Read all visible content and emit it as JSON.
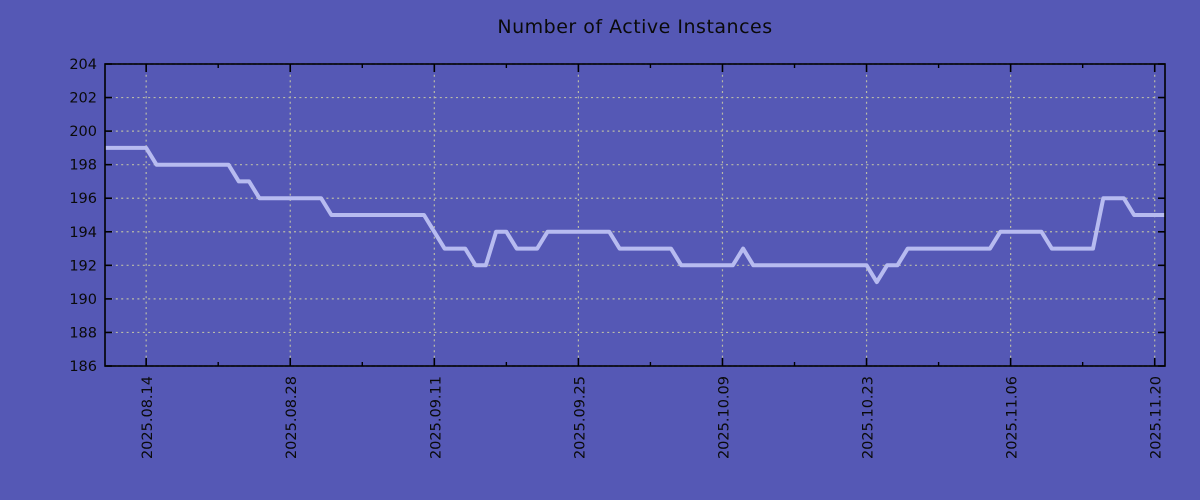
{
  "chart_data": {
    "type": "line",
    "title": "Number of Active Instances",
    "x_start_date": "2025.08.10",
    "x_end_date": "2025.11.21",
    "x_frequency": "daily",
    "values": [
      199,
      199,
      199,
      199,
      199,
      198,
      198,
      198,
      198,
      198,
      198,
      198,
      198,
      197,
      197,
      196,
      196,
      196,
      196,
      196,
      196,
      196,
      195,
      195,
      195,
      195,
      195,
      195,
      195,
      195,
      195,
      195,
      194,
      193,
      193,
      193,
      192,
      192,
      194,
      194,
      193,
      193,
      193,
      194,
      194,
      194,
      194,
      194,
      194,
      194,
      193,
      193,
      193,
      193,
      193,
      193,
      192,
      192,
      192,
      192,
      192,
      192,
      193,
      192,
      192,
      192,
      192,
      192,
      192,
      192,
      192,
      192,
      192,
      192,
      192,
      191,
      192,
      192,
      193,
      193,
      193,
      193,
      193,
      193,
      193,
      193,
      193,
      194,
      194,
      194,
      194,
      194,
      193,
      193,
      193,
      193,
      193,
      196,
      196,
      196,
      195,
      195,
      195,
      195
    ],
    "x_tick_labels": [
      "2025.08.14",
      "2025.08.28",
      "2025.09.11",
      "2025.09.25",
      "2025.10.09",
      "2025.10.23",
      "2025.11.06",
      "2025.11.20"
    ],
    "x_tick_indices": [
      4,
      18,
      32,
      46,
      60,
      74,
      88,
      102
    ],
    "x_minor_tick_indices": [
      11,
      25,
      39,
      53,
      67,
      81,
      95
    ],
    "y_ticks": [
      186,
      188,
      190,
      192,
      194,
      196,
      198,
      200,
      202,
      204
    ],
    "ylim": [
      186,
      204
    ],
    "grid": "dotted horizontal at y ticks, dotted vertical at major x ticks",
    "legend": "none"
  },
  "colors": {
    "background": "#5558b5",
    "line": "#b7bbf0",
    "grid": "#b9bba8",
    "frame": "#000000",
    "text": "#0a0a0a"
  }
}
